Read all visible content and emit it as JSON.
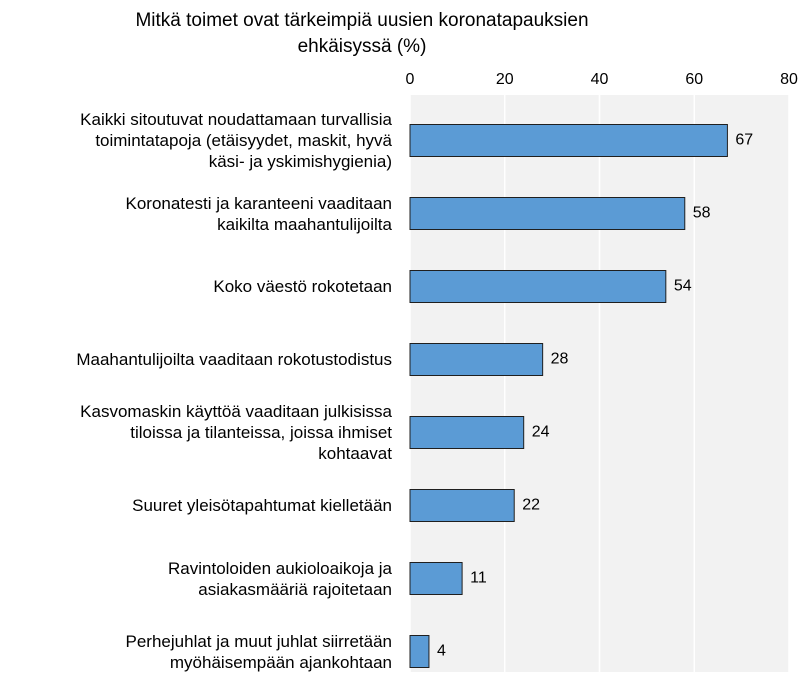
{
  "chart_data": {
    "type": "bar",
    "orientation": "horizontal",
    "title": "Mitkä toimet ovat tärkeimpiä uusien koronatapauksien\nehkäisyssä (%)",
    "categories": [
      "Kaikki sitoutuvat noudattamaan turvallisia\ntoimintatapoja (etäisyydet, maskit, hyvä\nkäsi- ja yskimishygienia)",
      "Koronatesti ja karanteeni vaaditaan\nkaikilta maahantulijoilta",
      "Koko väestö rokotetaan",
      "Maahantulijoilta vaaditaan rokotustodistus",
      "Kasvomaskin käyttöä vaaditaan julkisissa\ntiloissa ja tilanteissa, joissa ihmiset\nkohtaavat",
      "Suuret yleisötapahtumat kielletään",
      "Ravintoloiden aukioloaikoja ja\nasiakasmääriä rajoitetaan",
      "Perhejuhlat ja muut juhlat siirretään\nmyöhäisempään ajankohtaan"
    ],
    "values": [
      67,
      58,
      54,
      28,
      24,
      22,
      11,
      4
    ],
    "color": "#5b9bd5",
    "xlim": [
      0,
      80
    ],
    "xticks": [
      0,
      20,
      40,
      60,
      80
    ],
    "grid": true
  }
}
